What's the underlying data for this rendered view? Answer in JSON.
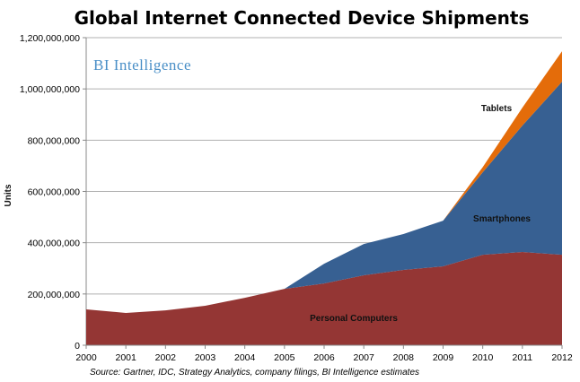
{
  "chart_data": {
    "type": "area",
    "stacked": true,
    "title": "Global Internet Connected Device Shipments",
    "ylabel": "Units",
    "xlabel": "",
    "brand": "BI Intelligence",
    "source": "Source: Gartner, IDC, Strategy Analytics, company filings, BI Intelligence estimates",
    "ylim": [
      0,
      1200000000
    ],
    "yticks": [
      "0",
      "200,000,000",
      "400,000,000",
      "600,000,000",
      "800,000,000",
      "1,000,000,000",
      "1,200,000,000"
    ],
    "ytick_values": [
      0,
      200000000,
      400000000,
      600000000,
      800000000,
      1000000000,
      1200000000
    ],
    "categories": [
      "2000",
      "2001",
      "2002",
      "2003",
      "2004",
      "2005",
      "2006",
      "2007",
      "2008",
      "2009",
      "2010",
      "2011",
      "2012"
    ],
    "grid": true,
    "series": [
      {
        "name": "Personal Computers",
        "color": "#943634",
        "values": [
          140000000,
          126000000,
          136000000,
          154000000,
          185000000,
          220000000,
          241000000,
          273000000,
          294000000,
          308000000,
          353000000,
          364000000,
          353000000
        ]
      },
      {
        "name": "Smartphones",
        "color": "#376092",
        "values": [
          0,
          0,
          0,
          0,
          0,
          0,
          77000000,
          122000000,
          140000000,
          178000000,
          322000000,
          493000000,
          675000000
        ]
      },
      {
        "name": "Tablets",
        "color": "#e46c0a",
        "values": [
          0,
          0,
          0,
          0,
          0,
          0,
          0,
          0,
          0,
          0,
          20000000,
          70000000,
          119000000
        ]
      }
    ]
  }
}
